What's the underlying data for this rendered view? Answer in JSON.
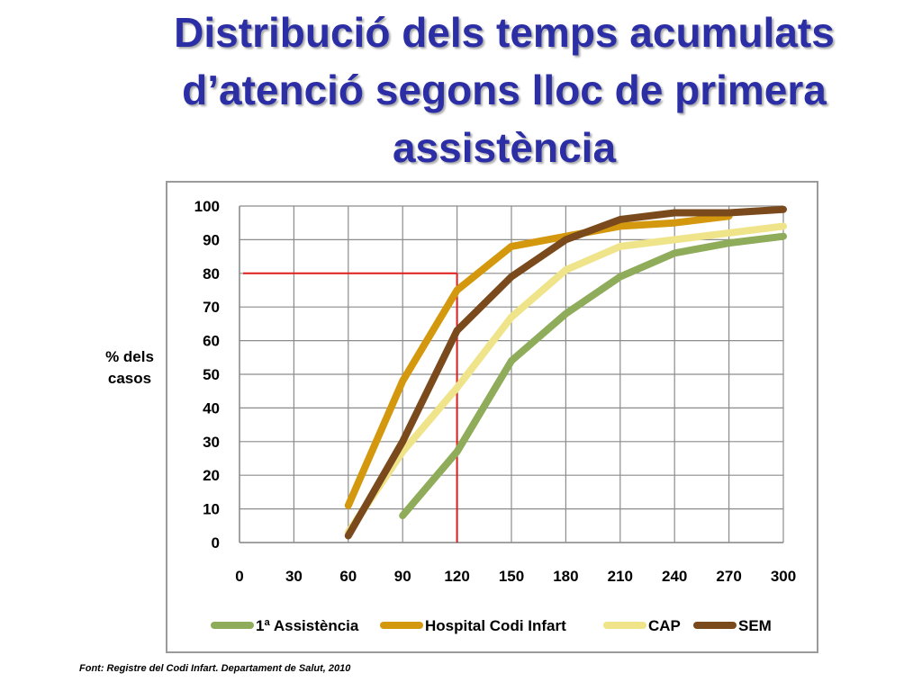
{
  "slide": {
    "title_lines": [
      "Distribució dels temps acumulats",
      "d’atenció segons lloc de primera",
      "assistència"
    ],
    "ylabel_lines": [
      "% dels",
      "casos"
    ],
    "source": "Font: Registre del Codi Infart. Departament de Salut, 2010",
    "title_color": "#2b2ea4"
  },
  "chart_data": {
    "type": "line",
    "x_ticks": [
      0,
      30,
      60,
      90,
      120,
      150,
      180,
      210,
      240,
      270,
      300
    ],
    "y_ticks": [
      0,
      10,
      20,
      30,
      40,
      50,
      60,
      70,
      80,
      90,
      100
    ],
    "xlim": [
      0,
      300
    ],
    "ylim": [
      0,
      100
    ],
    "grid": true,
    "legend_position": "bottom",
    "series": [
      {
        "name": "1ª Assistència",
        "color": "#8fac5a",
        "x": [
          90,
          120,
          150,
          180,
          210,
          240,
          270,
          300
        ],
        "y": [
          8,
          27,
          54,
          68,
          79,
          86,
          89,
          91
        ]
      },
      {
        "name": "Hospital Codi Infart",
        "color": "#d4980e",
        "x": [
          60,
          90,
          120,
          150,
          180,
          210,
          240,
          270
        ],
        "y": [
          11,
          48,
          75,
          88,
          91,
          94,
          95,
          97
        ]
      },
      {
        "name": "CAP",
        "color": "#efe48a",
        "x": [
          60,
          90,
          120,
          150,
          180,
          210,
          240,
          270,
          300
        ],
        "y": [
          3,
          27,
          46,
          67,
          81,
          88,
          90,
          92,
          94
        ]
      },
      {
        "name": "SEM",
        "color": "#7a4a1c",
        "x": [
          60,
          90,
          120,
          150,
          180,
          210,
          240,
          270,
          300
        ],
        "y": [
          2,
          30,
          63,
          79,
          90,
          96,
          98,
          98,
          99
        ]
      }
    ],
    "reference_lines": {
      "color": "#e01c1c",
      "y_value": 80,
      "x_value": 120
    }
  }
}
